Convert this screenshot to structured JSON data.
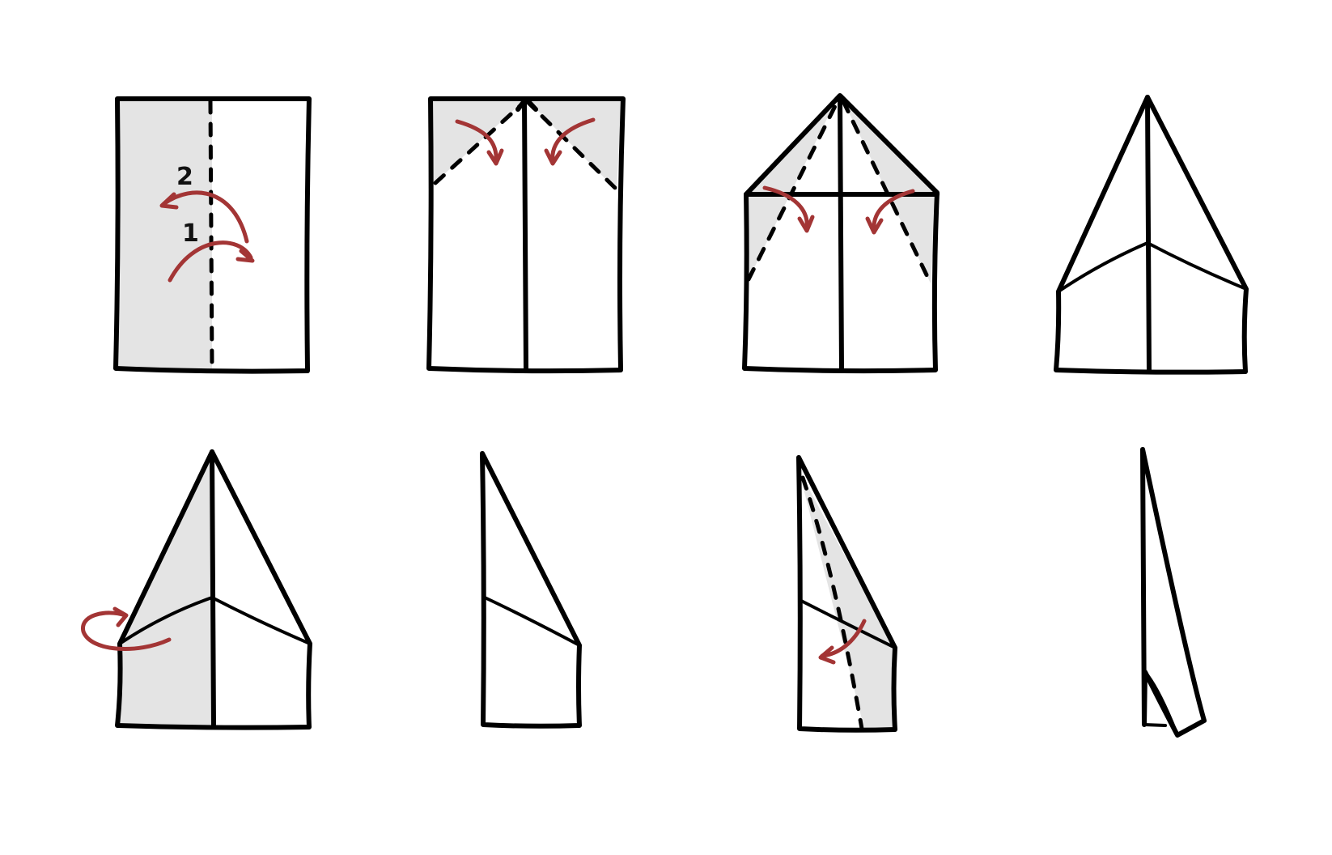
{
  "colors": {
    "line": "#000000",
    "shade": "#e4e4e4",
    "arrow": "#a33535",
    "background": "#ffffff"
  },
  "steps": [
    {
      "labels": [
        "2",
        "1"
      ]
    },
    {
      "labels": []
    },
    {
      "labels": []
    },
    {
      "labels": []
    },
    {
      "labels": []
    },
    {
      "labels": []
    },
    {
      "labels": []
    },
    {
      "labels": []
    }
  ]
}
